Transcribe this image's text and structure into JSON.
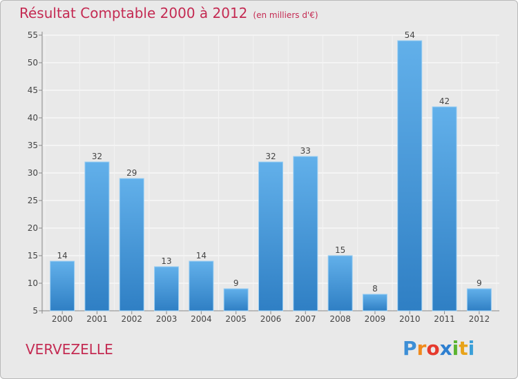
{
  "title": "Résultat Comptable 2000 à 2012",
  "subtitle": "(en milliers d'€)",
  "commune": "VERVEZELLE",
  "brand": {
    "letters": [
      "P",
      "r",
      "o",
      "x",
      "i",
      "t",
      "i"
    ],
    "colors": [
      "#3d8fd6",
      "#f08a1c",
      "#e63a2e",
      "#2e7fd0",
      "#5bb430",
      "#e8a31a",
      "#3a9fd8"
    ]
  },
  "colors": {
    "bar_top": "#62b0ea",
    "bar_bottom": "#2f7fc4",
    "title": "#c42a52",
    "background": "#e9e9e9"
  },
  "chart_data": {
    "type": "bar",
    "categories": [
      "2000",
      "2001",
      "2002",
      "2003",
      "2004",
      "2005",
      "2006",
      "2007",
      "2008",
      "2009",
      "2010",
      "2011",
      "2012"
    ],
    "values": [
      14,
      32,
      29,
      13,
      14,
      9,
      32,
      33,
      15,
      8,
      54,
      42,
      9
    ],
    "ylim": [
      5,
      55
    ],
    "yticks": [
      5,
      10,
      15,
      20,
      25,
      30,
      35,
      40,
      45,
      50,
      55
    ],
    "grid": true
  }
}
